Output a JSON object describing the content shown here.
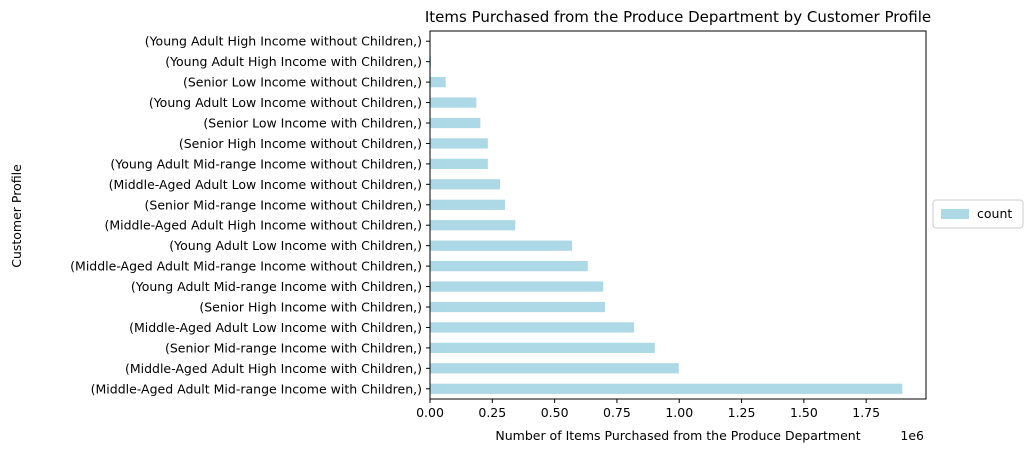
{
  "chart_data": {
    "type": "bar",
    "orientation": "horizontal",
    "title": "Items Purchased from the Produce Department by Customer Profile",
    "xlabel": "Number of Items Purchased from the Produce Department",
    "ylabel": "Customer Profile",
    "x_scale_label": "1e6",
    "xlim": [
      0,
      1.99
    ],
    "x_ticks": [
      0.0,
      0.25,
      0.5,
      0.75,
      1.0,
      1.25,
      1.5,
      1.75
    ],
    "x_tick_labels": [
      "0.00",
      "0.25",
      "0.50",
      "0.75",
      "1.00",
      "1.25",
      "1.50",
      "1.75"
    ],
    "bar_color": "#add8e6",
    "legend": {
      "position": "center-right",
      "entries": [
        "count"
      ]
    },
    "categories": [
      "(Middle-Aged Adult Mid-range Income with Children,)",
      "(Middle-Aged Adult High Income with Children,)",
      "(Senior Mid-range Income with Children,)",
      "(Middle-Aged Adult Low Income with Children,)",
      "(Senior High Income with Children,)",
      "(Young Adult Mid-range Income with Children,)",
      "(Middle-Aged Adult Mid-range Income without Children,)",
      "(Young Adult Low Income with Children,)",
      "(Middle-Aged Adult High Income without Children,)",
      "(Senior Mid-range Income without Children,)",
      "(Middle-Aged Adult Low Income without Children,)",
      "(Young Adult Mid-range Income without Children,)",
      "(Senior High Income without Children,)",
      "(Senior Low Income with Children,)",
      "(Young Adult Low Income without Children,)",
      "(Senior Low Income without Children,)",
      "(Young Adult High Income with Children,)",
      "(Young Adult High Income without Children,)"
    ],
    "series": [
      {
        "name": "count",
        "values": [
          1.895,
          0.998,
          0.902,
          0.819,
          0.702,
          0.695,
          0.633,
          0.57,
          0.342,
          0.301,
          0.281,
          0.232,
          0.232,
          0.202,
          0.186,
          0.063,
          0.004,
          0.001
        ]
      }
    ]
  }
}
